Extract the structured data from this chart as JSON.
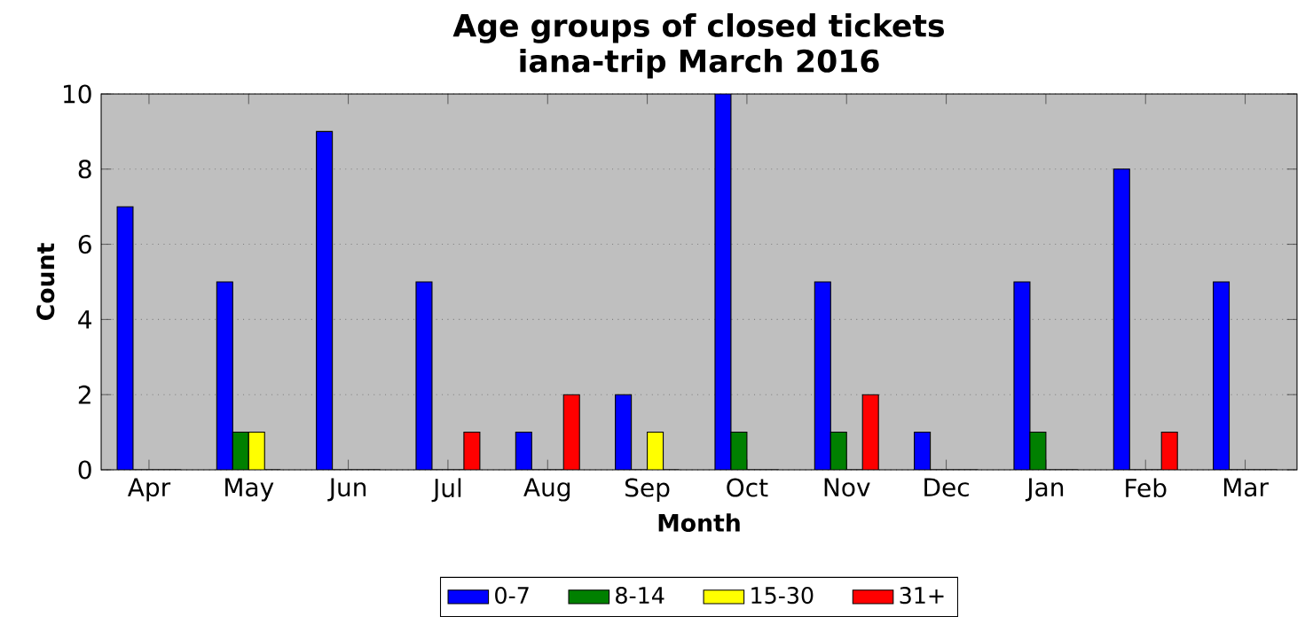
{
  "chart_data": {
    "type": "bar",
    "title": "Age groups of closed tickets",
    "subtitle": "iana-trip March 2016",
    "xlabel": "Month",
    "ylabel": "Count",
    "categories": [
      "Apr",
      "May",
      "Jun",
      "Jul",
      "Aug",
      "Sep",
      "Oct",
      "Nov",
      "Dec",
      "Jan",
      "Feb",
      "Mar"
    ],
    "series": [
      {
        "name": "0-7",
        "color": "#0000ff",
        "values": [
          7,
          5,
          9,
          5,
          1,
          2,
          10,
          5,
          1,
          5,
          8,
          5
        ]
      },
      {
        "name": "8-14",
        "color": "#008000",
        "values": [
          0,
          1,
          0,
          0,
          0,
          0,
          1,
          1,
          0,
          1,
          0,
          0
        ]
      },
      {
        "name": "15-30",
        "color": "#ffff00",
        "values": [
          0,
          1,
          0,
          0,
          0,
          1,
          0,
          0,
          0,
          0,
          0,
          0
        ]
      },
      {
        "name": "31+",
        "color": "#ff0000",
        "values": [
          0,
          0,
          0,
          1,
          2,
          0,
          0,
          2,
          0,
          0,
          1,
          0
        ]
      }
    ],
    "ylim": [
      0,
      10
    ],
    "yticks": [
      0,
      2,
      4,
      6,
      8,
      10
    ],
    "grid": "y",
    "legend": "bottom"
  }
}
